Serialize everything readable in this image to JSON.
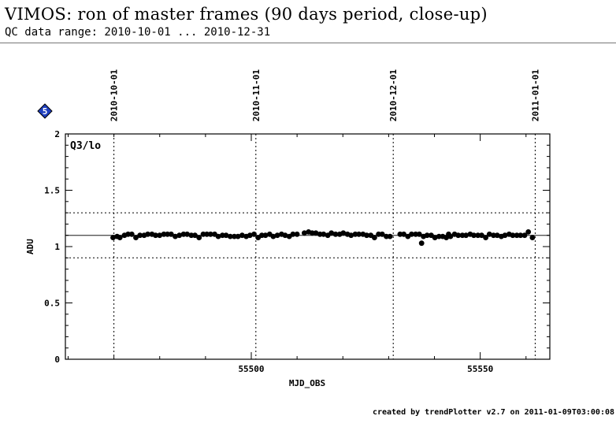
{
  "header": {
    "title": "VIMOS: ron of master frames (90 days period, close-up)",
    "subtitle": "QC data range: 2010-10-01 ... 2010-12-31"
  },
  "footer": {
    "credit": "created by trendPlotter v2.7 on 2011-01-09T03:00:08"
  },
  "badge": {
    "label": "5",
    "color": "#1f3fbf"
  },
  "colors": {
    "points": "#000000",
    "axes": "#000000",
    "reference": "#555555"
  },
  "chart_data": {
    "type": "scatter",
    "panel_label": "Q3/lo",
    "xlabel": "MJD_OBS",
    "ylabel": "ADU",
    "xlim": [
      55459.4,
      55565.2
    ],
    "ylim": [
      0,
      2
    ],
    "x_ticks": [
      55500,
      55550
    ],
    "y_ticks": [
      0,
      0.5,
      1,
      1.5,
      2
    ],
    "y_tick_labels": [
      "0",
      "0.5",
      "1",
      "1.5",
      "2"
    ],
    "reference_line": 1.1,
    "threshold_lines": [
      0.9,
      1.3
    ],
    "date_markers": [
      {
        "label": "2010-10-01",
        "mjd": 55470
      },
      {
        "label": "2010-11-01",
        "mjd": 55501
      },
      {
        "label": "2010-12-01",
        "mjd": 55531
      },
      {
        "label": "2011-01-01",
        "mjd": 55562
      }
    ],
    "series": [
      {
        "points": [
          [
            55469.8,
            1.08
          ],
          [
            55470.7,
            1.09
          ],
          [
            55471.3,
            1.08
          ],
          [
            55472.3,
            1.1
          ],
          [
            55473.1,
            1.11
          ],
          [
            55473.9,
            1.11
          ],
          [
            55474.8,
            1.08
          ],
          [
            55475.7,
            1.1
          ],
          [
            55476.6,
            1.1
          ],
          [
            55477.4,
            1.11
          ],
          [
            55478.3,
            1.11
          ],
          [
            55479.1,
            1.1
          ],
          [
            55480.0,
            1.1
          ],
          [
            55480.9,
            1.11
          ],
          [
            55481.7,
            1.11
          ],
          [
            55482.5,
            1.11
          ],
          [
            55483.4,
            1.09
          ],
          [
            55484.3,
            1.1
          ],
          [
            55485.2,
            1.11
          ],
          [
            55486.0,
            1.11
          ],
          [
            55486.9,
            1.1
          ],
          [
            55487.7,
            1.1
          ],
          [
            55488.6,
            1.08
          ],
          [
            55489.5,
            1.11
          ],
          [
            55490.3,
            1.11
          ],
          [
            55491.1,
            1.11
          ],
          [
            55492.0,
            1.11
          ],
          [
            55492.8,
            1.09
          ],
          [
            55493.7,
            1.1
          ],
          [
            55494.5,
            1.1
          ],
          [
            55495.4,
            1.09
          ],
          [
            55496.3,
            1.09
          ],
          [
            55497.1,
            1.09
          ],
          [
            55498.0,
            1.1
          ],
          [
            55498.9,
            1.09
          ],
          [
            55499.7,
            1.1
          ],
          [
            55500.6,
            1.11
          ],
          [
            55501.5,
            1.08
          ],
          [
            55502.3,
            1.1
          ],
          [
            55503.1,
            1.1
          ],
          [
            55504.0,
            1.11
          ],
          [
            55504.8,
            1.09
          ],
          [
            55505.7,
            1.1
          ],
          [
            55506.6,
            1.11
          ],
          [
            55507.4,
            1.1
          ],
          [
            55508.3,
            1.09
          ],
          [
            55509.1,
            1.11
          ],
          [
            55510.0,
            1.11
          ],
          [
            55511.6,
            1.12
          ],
          [
            55512.5,
            1.13
          ],
          [
            55513.3,
            1.12
          ],
          [
            55514.1,
            1.12
          ],
          [
            55515.0,
            1.11
          ],
          [
            55515.8,
            1.11
          ],
          [
            55516.7,
            1.1
          ],
          [
            55517.5,
            1.12
          ],
          [
            55518.4,
            1.11
          ],
          [
            55519.3,
            1.11
          ],
          [
            55520.1,
            1.12
          ],
          [
            55521.0,
            1.11
          ],
          [
            55521.8,
            1.1
          ],
          [
            55522.7,
            1.11
          ],
          [
            55523.5,
            1.11
          ],
          [
            55524.4,
            1.11
          ],
          [
            55525.2,
            1.1
          ],
          [
            55526.1,
            1.1
          ],
          [
            55526.9,
            1.08
          ],
          [
            55527.8,
            1.11
          ],
          [
            55528.6,
            1.11
          ],
          [
            55529.5,
            1.09
          ],
          [
            55530.3,
            1.09
          ],
          [
            55532.5,
            1.11
          ],
          [
            55533.3,
            1.11
          ],
          [
            55534.2,
            1.09
          ],
          [
            55535.0,
            1.11
          ],
          [
            55535.9,
            1.11
          ],
          [
            55536.7,
            1.11
          ],
          [
            55537.2,
            1.03
          ],
          [
            55537.6,
            1.09
          ],
          [
            55538.4,
            1.1
          ],
          [
            55539.3,
            1.1
          ],
          [
            55540.1,
            1.08
          ],
          [
            55541.0,
            1.09
          ],
          [
            55541.8,
            1.09
          ],
          [
            55542.6,
            1.08
          ],
          [
            55543.1,
            1.11
          ],
          [
            55543.5,
            1.09
          ],
          [
            55544.4,
            1.11
          ],
          [
            55545.2,
            1.1
          ],
          [
            55546.1,
            1.1
          ],
          [
            55546.9,
            1.1
          ],
          [
            55547.8,
            1.11
          ],
          [
            55548.6,
            1.1
          ],
          [
            55549.5,
            1.1
          ],
          [
            55550.3,
            1.1
          ],
          [
            55551.2,
            1.08
          ],
          [
            55552.0,
            1.11
          ],
          [
            55552.9,
            1.1
          ],
          [
            55553.7,
            1.1
          ],
          [
            55554.6,
            1.09
          ],
          [
            55555.4,
            1.1
          ],
          [
            55556.3,
            1.11
          ],
          [
            55557.1,
            1.1
          ],
          [
            55558.0,
            1.1
          ],
          [
            55558.8,
            1.1
          ],
          [
            55559.7,
            1.1
          ],
          [
            55560.5,
            1.13
          ],
          [
            55561.4,
            1.08
          ]
        ]
      }
    ]
  }
}
